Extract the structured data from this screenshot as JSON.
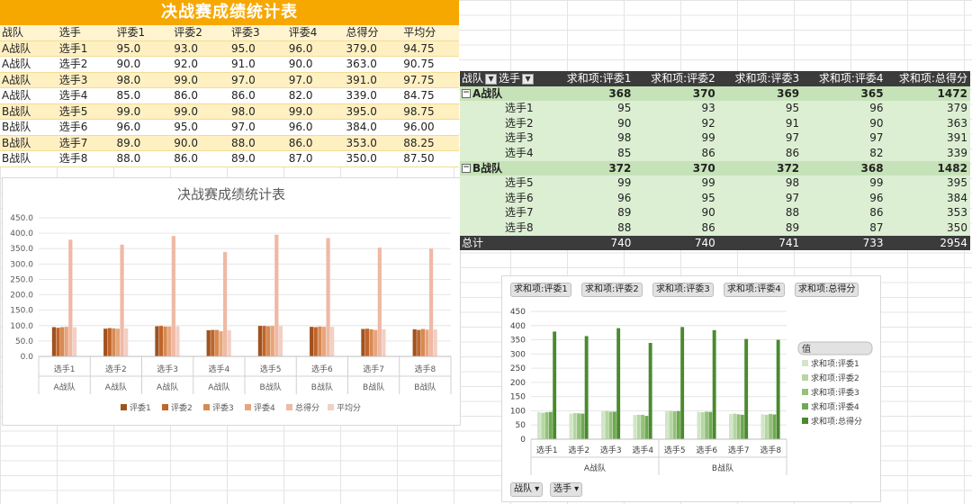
{
  "source_table": {
    "title": "决战赛成绩统计表",
    "headers": [
      "战队",
      "选手",
      "评委1",
      "评委2",
      "评委3",
      "评委4",
      "总得分",
      "平均分"
    ],
    "rows": [
      [
        "A战队",
        "选手1",
        "95.0",
        "93.0",
        "95.0",
        "96.0",
        "379.0",
        "94.75"
      ],
      [
        "A战队",
        "选手2",
        "90.0",
        "92.0",
        "91.0",
        "90.0",
        "363.0",
        "90.75"
      ],
      [
        "A战队",
        "选手3",
        "98.0",
        "99.0",
        "97.0",
        "97.0",
        "391.0",
        "97.75"
      ],
      [
        "A战队",
        "选手4",
        "85.0",
        "86.0",
        "86.0",
        "82.0",
        "339.0",
        "84.75"
      ],
      [
        "B战队",
        "选手5",
        "99.0",
        "99.0",
        "98.0",
        "99.0",
        "395.0",
        "98.75"
      ],
      [
        "B战队",
        "选手6",
        "96.0",
        "95.0",
        "97.0",
        "96.0",
        "384.0",
        "96.00"
      ],
      [
        "B战队",
        "选手7",
        "89.0",
        "90.0",
        "88.0",
        "86.0",
        "353.0",
        "88.25"
      ],
      [
        "B战队",
        "选手8",
        "88.0",
        "86.0",
        "89.0",
        "87.0",
        "350.0",
        "87.50"
      ]
    ]
  },
  "pivot_table": {
    "header": {
      "team": "战队",
      "player": "选手",
      "cols": [
        "求和项:评委1",
        "求和项:评委2",
        "求和项:评委3",
        "求和项:评委4",
        "求和项:总得分"
      ]
    },
    "groups": [
      {
        "label": "A战队",
        "totals": [
          "368",
          "370",
          "369",
          "365",
          "1472"
        ],
        "items": [
          {
            "label": "选手1",
            "values": [
              "95",
              "93",
              "95",
              "96",
              "379"
            ]
          },
          {
            "label": "选手2",
            "values": [
              "90",
              "92",
              "91",
              "90",
              "363"
            ]
          },
          {
            "label": "选手3",
            "values": [
              "98",
              "99",
              "97",
              "97",
              "391"
            ]
          },
          {
            "label": "选手4",
            "values": [
              "85",
              "86",
              "86",
              "82",
              "339"
            ]
          }
        ]
      },
      {
        "label": "B战队",
        "totals": [
          "372",
          "370",
          "372",
          "368",
          "1482"
        ],
        "items": [
          {
            "label": "选手5",
            "values": [
              "99",
              "99",
              "98",
              "99",
              "395"
            ]
          },
          {
            "label": "选手6",
            "values": [
              "96",
              "95",
              "97",
              "96",
              "384"
            ]
          },
          {
            "label": "选手7",
            "values": [
              "89",
              "90",
              "88",
              "86",
              "353"
            ]
          },
          {
            "label": "选手8",
            "values": [
              "88",
              "86",
              "89",
              "87",
              "350"
            ]
          }
        ]
      }
    ],
    "grand_total": {
      "label": "总计",
      "values": [
        "740",
        "740",
        "741",
        "733",
        "2954"
      ]
    }
  },
  "chart_data": [
    {
      "type": "bar",
      "title": "决战赛成绩统计表",
      "categories": [
        "选手1",
        "选手2",
        "选手3",
        "选手4",
        "选手5",
        "选手6",
        "选手7",
        "选手8"
      ],
      "groups": [
        "A战队",
        "A战队",
        "A战队",
        "A战队",
        "B战队",
        "B战队",
        "B战队",
        "B战队"
      ],
      "series": [
        {
          "name": "评委1",
          "color": "#a0521e",
          "values": [
            95,
            90,
            98,
            85,
            99,
            96,
            89,
            88
          ]
        },
        {
          "name": "评委2",
          "color": "#c0652b",
          "values": [
            93,
            92,
            99,
            86,
            99,
            95,
            90,
            86
          ]
        },
        {
          "name": "评委3",
          "color": "#d88a52",
          "values": [
            95,
            91,
            97,
            86,
            98,
            97,
            88,
            89
          ]
        },
        {
          "name": "评委4",
          "color": "#e7a57b",
          "values": [
            96,
            90,
            97,
            82,
            99,
            96,
            86,
            87
          ]
        },
        {
          "name": "总得分",
          "color": "#efb9a4",
          "values": [
            379,
            363,
            391,
            339,
            395,
            384,
            353,
            350
          ]
        },
        {
          "name": "平均分",
          "color": "#f3cfc4",
          "values": [
            94.75,
            90.75,
            97.75,
            84.75,
            98.75,
            96.0,
            88.25,
            87.5
          ]
        }
      ],
      "ylim": [
        0,
        450
      ],
      "yticks": [
        "0.0",
        "50.0",
        "100.0",
        "150.0",
        "200.0",
        "250.0",
        "300.0",
        "350.0",
        "400.0",
        "450.0"
      ],
      "legend": "bottom",
      "grid": true
    },
    {
      "type": "bar",
      "title": "",
      "categories": [
        "选手1",
        "选手2",
        "选手3",
        "选手4",
        "选手5",
        "选手6",
        "选手7",
        "选手8"
      ],
      "group_labels": [
        "A战队",
        "B战队"
      ],
      "series": [
        {
          "name": "求和项:评委1",
          "color": "#d3e5c9",
          "values": [
            95,
            90,
            98,
            85,
            99,
            96,
            89,
            88
          ]
        },
        {
          "name": "求和项:评委2",
          "color": "#b6d6a4",
          "values": [
            93,
            92,
            99,
            86,
            99,
            95,
            90,
            86
          ]
        },
        {
          "name": "求和项:评委3",
          "color": "#93c278",
          "values": [
            95,
            91,
            97,
            86,
            98,
            97,
            88,
            89
          ]
        },
        {
          "name": "求和项:评委4",
          "color": "#70a854",
          "values": [
            96,
            90,
            97,
            82,
            99,
            96,
            86,
            87
          ]
        },
        {
          "name": "求和项:总得分",
          "color": "#4a8a2e",
          "values": [
            379,
            363,
            391,
            339,
            395,
            384,
            353,
            350
          ]
        }
      ],
      "ylim": [
        0,
        450
      ],
      "yticks": [
        "0",
        "50",
        "100",
        "150",
        "200",
        "250",
        "300",
        "350",
        "400",
        "450"
      ],
      "legend": "right",
      "legend_title": "值",
      "grid": true,
      "field_buttons": [
        "求和项:评委1",
        "求和项:评委2",
        "求和项:评委3",
        "求和项:评委4",
        "求和项:总得分"
      ],
      "axis_buttons": [
        "战队",
        "选手"
      ]
    }
  ]
}
